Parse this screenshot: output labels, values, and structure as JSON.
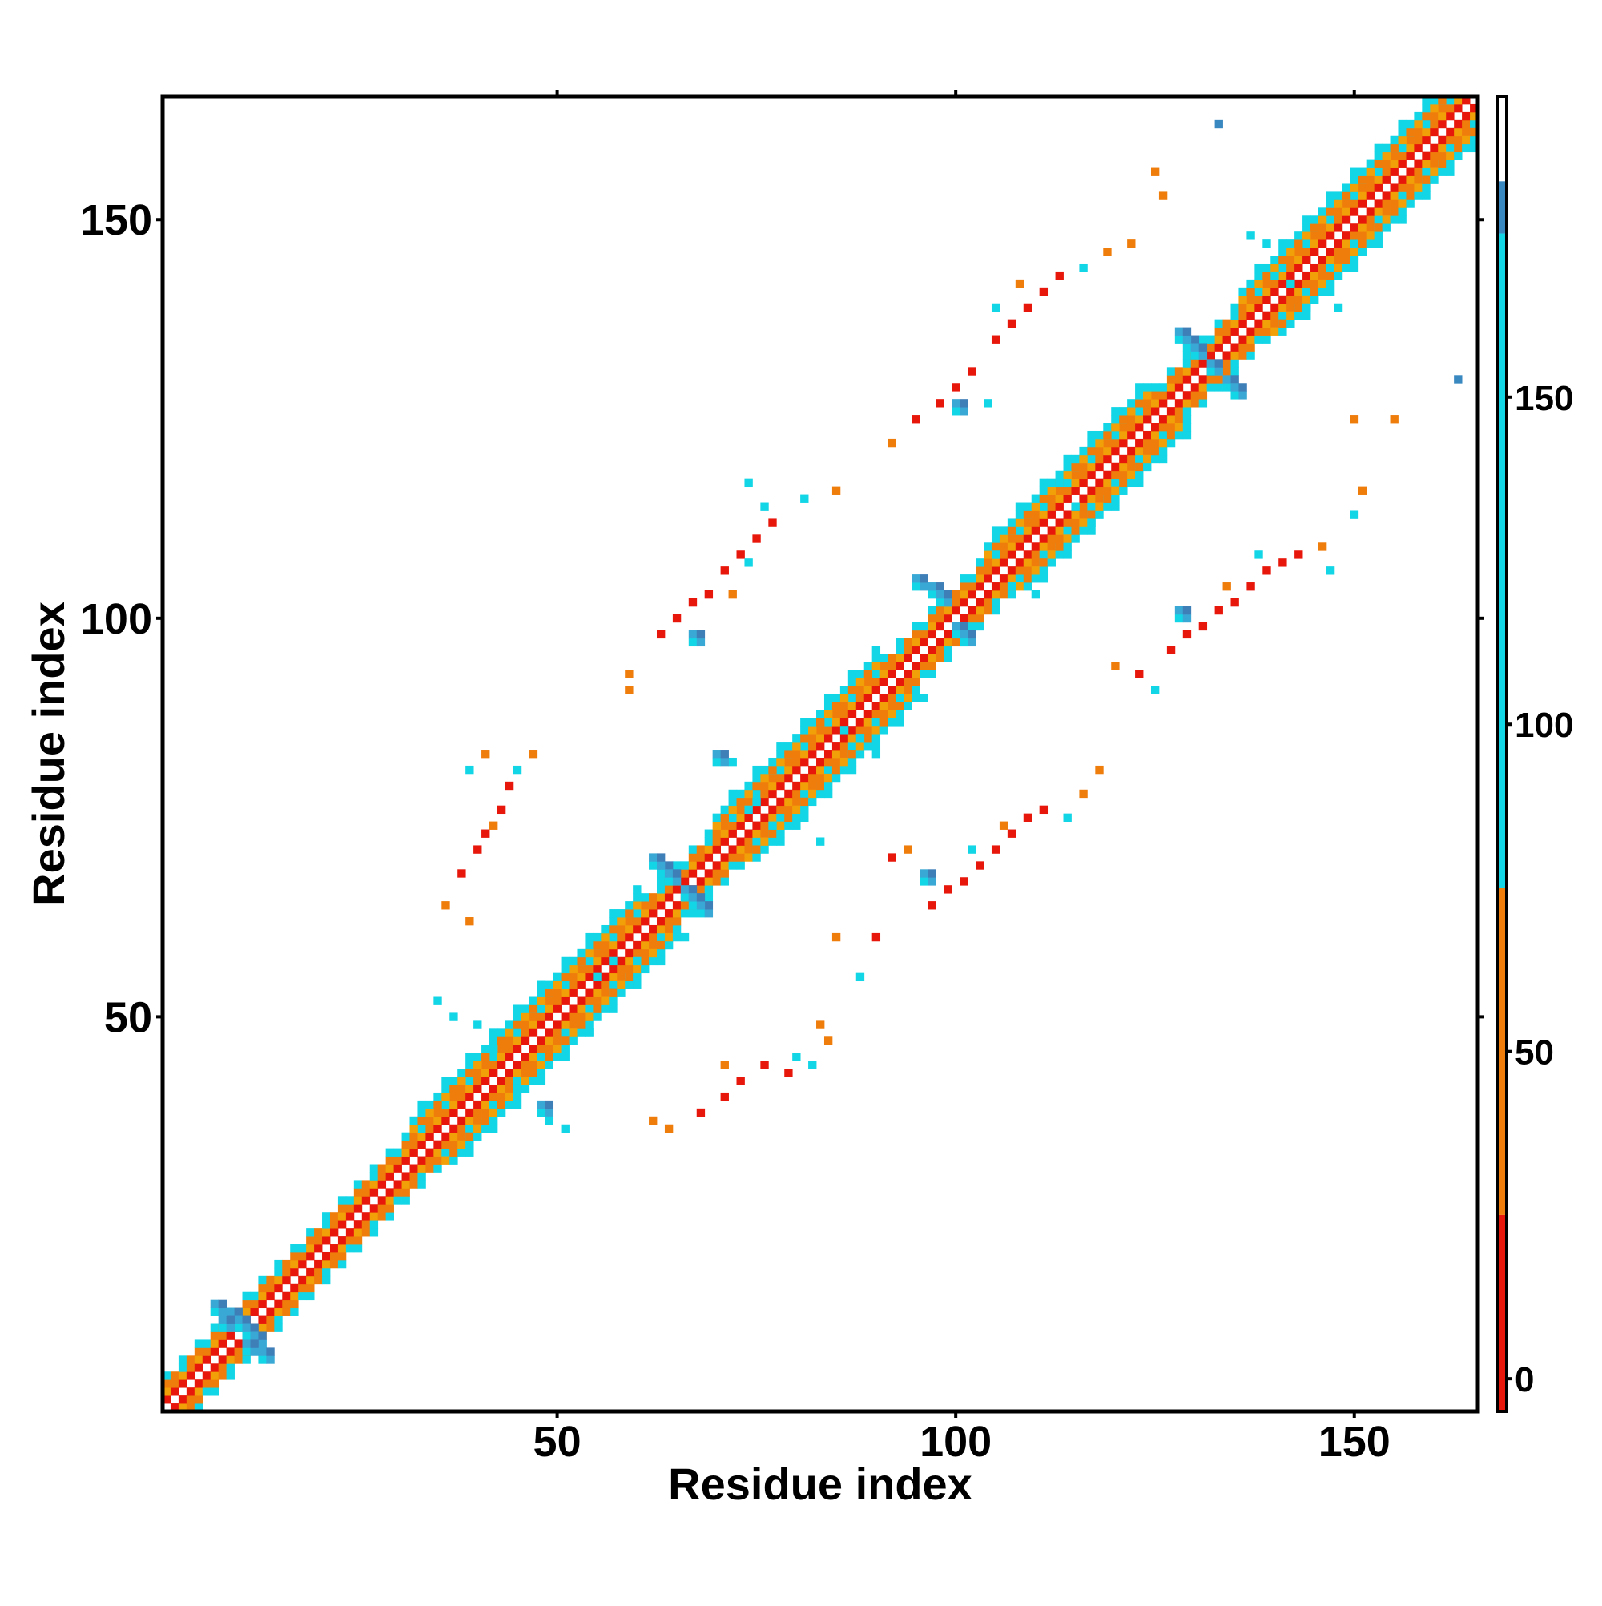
{
  "chart_data": {
    "type": "heatmap",
    "title": "",
    "xlabel": "Residue index",
    "ylabel": "Residue index",
    "xlim": [
      1,
      165
    ],
    "ylim": [
      1,
      165
    ],
    "x_ticks": [
      50,
      100,
      150
    ],
    "y_ticks": [
      50,
      100,
      150
    ],
    "x_tick_labels": [
      "50",
      "100",
      "150"
    ],
    "y_tick_labels": [
      "50",
      "100",
      "150"
    ],
    "colorbar": {
      "range": [
        -5,
        196
      ],
      "ticks": [
        0,
        50,
        100,
        150
      ],
      "tick_labels": [
        "0",
        "50",
        "100",
        "150"
      ],
      "bands": [
        {
          "from": -5,
          "to": 25,
          "color": "#e8170b"
        },
        {
          "from": 25,
          "to": 75,
          "color": "#ef7d0c"
        },
        {
          "from": 75,
          "to": 175,
          "color": "#12d5e6"
        },
        {
          "from": 175,
          "to": 183,
          "color": "#3a88c0"
        },
        {
          "from": 183,
          "to": 196,
          "color": "#ffffff"
        }
      ]
    },
    "colors": {
      "red": "#e8170b",
      "orange": "#ef7d0c",
      "amber": "#f2a007",
      "cyan": "#12d5e6",
      "lightblue": "#3aa8d4",
      "steelblue": "#3f7fb8"
    },
    "diagonal": {
      "from": 1,
      "to": 165,
      "band_width": 1
    },
    "cells": [
      {
        "x": 9,
        "y": 12,
        "value": 160
      },
      {
        "x": 10,
        "y": 11,
        "value": 160
      },
      {
        "x": 11,
        "y": 10,
        "value": 160
      },
      {
        "x": 12,
        "y": 9,
        "value": 160
      },
      {
        "x": 8,
        "y": 11,
        "value": 160
      },
      {
        "x": 11,
        "y": 8,
        "value": 160
      },
      {
        "x": 13,
        "y": 7,
        "value": 160
      },
      {
        "x": 7,
        "y": 13,
        "value": 160
      },
      {
        "x": 42,
        "y": 46,
        "value": 110
      },
      {
        "x": 40,
        "y": 49,
        "value": 110
      },
      {
        "x": 45,
        "y": 41,
        "value": 110
      },
      {
        "x": 48,
        "y": 38,
        "value": 160
      },
      {
        "x": 37,
        "y": 50,
        "value": 110
      },
      {
        "x": 35,
        "y": 52,
        "value": 110
      },
      {
        "x": 49,
        "y": 37,
        "value": 110
      },
      {
        "x": 51,
        "y": 36,
        "value": 110
      },
      {
        "x": 55,
        "y": 55,
        "value": 110
      },
      {
        "x": 57,
        "y": 57,
        "value": 110
      },
      {
        "x": 60,
        "y": 57,
        "value": 110
      },
      {
        "x": 63,
        "y": 68,
        "value": 160
      },
      {
        "x": 64,
        "y": 67,
        "value": 160
      },
      {
        "x": 66,
        "y": 65,
        "value": 160
      },
      {
        "x": 68,
        "y": 63,
        "value": 160
      },
      {
        "x": 67,
        "y": 64,
        "value": 160
      },
      {
        "x": 62,
        "y": 69,
        "value": 160
      },
      {
        "x": 75,
        "y": 77,
        "value": 110
      },
      {
        "x": 74,
        "y": 76,
        "value": 110
      },
      {
        "x": 77,
        "y": 74,
        "value": 110
      },
      {
        "x": 80,
        "y": 74,
        "value": 110
      },
      {
        "x": 72,
        "y": 82,
        "value": 110
      },
      {
        "x": 70,
        "y": 82,
        "value": 160
      },
      {
        "x": 83,
        "y": 72,
        "value": 110
      },
      {
        "x": 88,
        "y": 85,
        "value": 110
      },
      {
        "x": 86,
        "y": 86,
        "value": 110
      },
      {
        "x": 90,
        "y": 83,
        "value": 110
      },
      {
        "x": 97,
        "y": 103,
        "value": 160
      },
      {
        "x": 98,
        "y": 102,
        "value": 160
      },
      {
        "x": 100,
        "y": 98,
        "value": 160
      },
      {
        "x": 101,
        "y": 97,
        "value": 160
      },
      {
        "x": 95,
        "y": 104,
        "value": 160
      },
      {
        "x": 105,
        "y": 108,
        "value": 110
      },
      {
        "x": 107,
        "y": 104,
        "value": 110
      },
      {
        "x": 110,
        "y": 103,
        "value": 110
      },
      {
        "x": 113,
        "y": 117,
        "value": 110
      },
      {
        "x": 115,
        "y": 114,
        "value": 110
      },
      {
        "x": 117,
        "y": 112,
        "value": 110
      },
      {
        "x": 129,
        "y": 134,
        "value": 160
      },
      {
        "x": 130,
        "y": 133,
        "value": 160
      },
      {
        "x": 132,
        "y": 131,
        "value": 160
      },
      {
        "x": 134,
        "y": 129,
        "value": 160
      },
      {
        "x": 128,
        "y": 135,
        "value": 160
      },
      {
        "x": 135,
        "y": 128,
        "value": 160
      },
      {
        "x": 140,
        "y": 143,
        "value": 110
      },
      {
        "x": 142,
        "y": 142,
        "value": 110
      },
      {
        "x": 144,
        "y": 139,
        "value": 110
      },
      {
        "x": 137,
        "y": 148,
        "value": 110
      },
      {
        "x": 139,
        "y": 147,
        "value": 110
      },
      {
        "x": 148,
        "y": 139,
        "value": 110
      },
      {
        "x": 133,
        "y": 162,
        "value": 180
      },
      {
        "x": 163,
        "y": 130,
        "value": 180
      },
      {
        "x": 38,
        "y": 68,
        "value": 10
      },
      {
        "x": 40,
        "y": 71,
        "value": 10
      },
      {
        "x": 41,
        "y": 73,
        "value": 10
      },
      {
        "x": 43,
        "y": 76,
        "value": 10
      },
      {
        "x": 44,
        "y": 79,
        "value": 10
      },
      {
        "x": 42,
        "y": 74,
        "value": 50
      },
      {
        "x": 39,
        "y": 81,
        "value": 110
      },
      {
        "x": 45,
        "y": 81,
        "value": 110
      },
      {
        "x": 47,
        "y": 83,
        "value": 50
      },
      {
        "x": 41,
        "y": 83,
        "value": 50
      },
      {
        "x": 36,
        "y": 64,
        "value": 50
      },
      {
        "x": 39,
        "y": 62,
        "value": 50
      },
      {
        "x": 59,
        "y": 93,
        "value": 50
      },
      {
        "x": 59,
        "y": 91,
        "value": 50
      },
      {
        "x": 63,
        "y": 98,
        "value": 10
      },
      {
        "x": 65,
        "y": 100,
        "value": 10
      },
      {
        "x": 67,
        "y": 102,
        "value": 10
      },
      {
        "x": 69,
        "y": 103,
        "value": 10
      },
      {
        "x": 71,
        "y": 106,
        "value": 10
      },
      {
        "x": 73,
        "y": 108,
        "value": 10
      },
      {
        "x": 75,
        "y": 110,
        "value": 10
      },
      {
        "x": 77,
        "y": 112,
        "value": 10
      },
      {
        "x": 67,
        "y": 97,
        "value": 160
      },
      {
        "x": 72,
        "y": 103,
        "value": 50
      },
      {
        "x": 74,
        "y": 107,
        "value": 110
      },
      {
        "x": 76,
        "y": 114,
        "value": 110
      },
      {
        "x": 74,
        "y": 117,
        "value": 110
      },
      {
        "x": 81,
        "y": 115,
        "value": 110
      },
      {
        "x": 85,
        "y": 116,
        "value": 50
      },
      {
        "x": 92,
        "y": 122,
        "value": 50
      },
      {
        "x": 95,
        "y": 125,
        "value": 10
      },
      {
        "x": 98,
        "y": 127,
        "value": 10
      },
      {
        "x": 100,
        "y": 129,
        "value": 10
      },
      {
        "x": 102,
        "y": 131,
        "value": 10
      },
      {
        "x": 100,
        "y": 126,
        "value": 160
      },
      {
        "x": 104,
        "y": 127,
        "value": 110
      },
      {
        "x": 105,
        "y": 135,
        "value": 10
      },
      {
        "x": 107,
        "y": 137,
        "value": 10
      },
      {
        "x": 109,
        "y": 139,
        "value": 10
      },
      {
        "x": 111,
        "y": 141,
        "value": 10
      },
      {
        "x": 113,
        "y": 143,
        "value": 10
      },
      {
        "x": 105,
        "y": 139,
        "value": 110
      },
      {
        "x": 108,
        "y": 142,
        "value": 50
      },
      {
        "x": 116,
        "y": 144,
        "value": 110
      },
      {
        "x": 119,
        "y": 146,
        "value": 50
      },
      {
        "x": 122,
        "y": 147,
        "value": 50
      },
      {
        "x": 125,
        "y": 156,
        "value": 50
      },
      {
        "x": 126,
        "y": 153,
        "value": 50
      },
      {
        "x": 68,
        "y": 38,
        "value": 10
      },
      {
        "x": 71,
        "y": 40,
        "value": 10
      },
      {
        "x": 73,
        "y": 42,
        "value": 10
      },
      {
        "x": 76,
        "y": 44,
        "value": 10
      },
      {
        "x": 79,
        "y": 43,
        "value": 10
      },
      {
        "x": 71,
        "y": 44,
        "value": 50
      },
      {
        "x": 80,
        "y": 45,
        "value": 110
      },
      {
        "x": 82,
        "y": 44,
        "value": 110
      },
      {
        "x": 84,
        "y": 47,
        "value": 50
      },
      {
        "x": 83,
        "y": 49,
        "value": 50
      },
      {
        "x": 62,
        "y": 37,
        "value": 50
      },
      {
        "x": 64,
        "y": 36,
        "value": 50
      },
      {
        "x": 88,
        "y": 55,
        "value": 110
      },
      {
        "x": 85,
        "y": 60,
        "value": 50
      },
      {
        "x": 90,
        "y": 60,
        "value": 10
      },
      {
        "x": 97,
        "y": 64,
        "value": 10
      },
      {
        "x": 99,
        "y": 66,
        "value": 10
      },
      {
        "x": 101,
        "y": 67,
        "value": 10
      },
      {
        "x": 103,
        "y": 69,
        "value": 10
      },
      {
        "x": 105,
        "y": 71,
        "value": 10
      },
      {
        "x": 107,
        "y": 73,
        "value": 10
      },
      {
        "x": 109,
        "y": 75,
        "value": 10
      },
      {
        "x": 111,
        "y": 76,
        "value": 10
      },
      {
        "x": 96,
        "y": 67,
        "value": 160
      },
      {
        "x": 102,
        "y": 71,
        "value": 110
      },
      {
        "x": 106,
        "y": 74,
        "value": 50
      },
      {
        "x": 114,
        "y": 75,
        "value": 110
      },
      {
        "x": 116,
        "y": 78,
        "value": 50
      },
      {
        "x": 118,
        "y": 81,
        "value": 50
      },
      {
        "x": 92,
        "y": 70,
        "value": 10
      },
      {
        "x": 94,
        "y": 71,
        "value": 50
      },
      {
        "x": 120,
        "y": 94,
        "value": 50
      },
      {
        "x": 123,
        "y": 93,
        "value": 10
      },
      {
        "x": 125,
        "y": 91,
        "value": 110
      },
      {
        "x": 127,
        "y": 96,
        "value": 10
      },
      {
        "x": 129,
        "y": 98,
        "value": 10
      },
      {
        "x": 131,
        "y": 99,
        "value": 10
      },
      {
        "x": 133,
        "y": 101,
        "value": 10
      },
      {
        "x": 135,
        "y": 102,
        "value": 10
      },
      {
        "x": 137,
        "y": 104,
        "value": 10
      },
      {
        "x": 139,
        "y": 106,
        "value": 10
      },
      {
        "x": 141,
        "y": 107,
        "value": 10
      },
      {
        "x": 143,
        "y": 108,
        "value": 10
      },
      {
        "x": 128,
        "y": 100,
        "value": 160
      },
      {
        "x": 134,
        "y": 104,
        "value": 50
      },
      {
        "x": 138,
        "y": 108,
        "value": 110
      },
      {
        "x": 147,
        "y": 106,
        "value": 110
      },
      {
        "x": 146,
        "y": 109,
        "value": 50
      },
      {
        "x": 150,
        "y": 113,
        "value": 110
      },
      {
        "x": 151,
        "y": 116,
        "value": 50
      },
      {
        "x": 150,
        "y": 125,
        "value": 50
      },
      {
        "x": 155,
        "y": 125,
        "value": 50
      }
    ]
  }
}
